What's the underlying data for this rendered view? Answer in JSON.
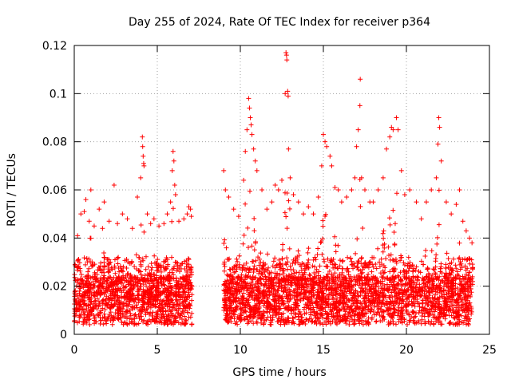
{
  "chart_data": {
    "type": "scatter",
    "title": "Day 255 of 2024, Rate Of TEC Index for receiver p364",
    "xlabel": "GPS time / hours",
    "ylabel": "ROTI / TECUs",
    "xlim": [
      0,
      25
    ],
    "ylim": [
      0,
      0.12
    ],
    "xticks": [
      0,
      5,
      10,
      15,
      20,
      25
    ],
    "xtick_labels": [
      "0",
      "5",
      "10",
      "15",
      "20",
      "25"
    ],
    "yticks": [
      0,
      0.02,
      0.04,
      0.06,
      0.08,
      0.1,
      0.12
    ],
    "ytick_labels": [
      "0",
      "0.02",
      "0.04",
      "0.06",
      "0.08",
      "0.1",
      "0.12"
    ],
    "grid": true,
    "marker": "+",
    "color": "#ff0000",
    "data_segments": [
      {
        "start_hour": 0.0,
        "end_hour": 7.1
      },
      {
        "start_hour": 9.0,
        "end_hour": 24.0
      }
    ],
    "series": [
      {
        "name": "ROTI",
        "points": [
          [
            0.05,
            0.029
          ],
          [
            0.2,
            0.041
          ],
          [
            0.4,
            0.05
          ],
          [
            0.6,
            0.051
          ],
          [
            0.7,
            0.056
          ],
          [
            0.9,
            0.047
          ],
          [
            1.0,
            0.06
          ],
          [
            1.2,
            0.045
          ],
          [
            1.5,
            0.052
          ],
          [
            1.7,
            0.044
          ],
          [
            1.8,
            0.055
          ],
          [
            2.1,
            0.047
          ],
          [
            2.4,
            0.062
          ],
          [
            2.6,
            0.046
          ],
          [
            2.9,
            0.05
          ],
          [
            3.2,
            0.048
          ],
          [
            3.5,
            0.044
          ],
          [
            3.8,
            0.057
          ],
          [
            4.0,
            0.065
          ],
          [
            4.1,
            0.082
          ],
          [
            4.12,
            0.078
          ],
          [
            4.15,
            0.074
          ],
          [
            4.18,
            0.071
          ],
          [
            4.2,
            0.07
          ],
          [
            4.4,
            0.05
          ],
          [
            4.6,
            0.046
          ],
          [
            4.8,
            0.048
          ],
          [
            5.1,
            0.045
          ],
          [
            5.4,
            0.046
          ],
          [
            5.6,
            0.05
          ],
          [
            5.8,
            0.055
          ],
          [
            5.9,
            0.068
          ],
          [
            5.95,
            0.076
          ],
          [
            6.0,
            0.072
          ],
          [
            6.05,
            0.062
          ],
          [
            6.1,
            0.058
          ],
          [
            6.3,
            0.047
          ],
          [
            6.6,
            0.048
          ],
          [
            6.8,
            0.05
          ],
          [
            6.9,
            0.053
          ],
          [
            7.0,
            0.052
          ],
          [
            7.05,
            0.049
          ],
          [
            9.0,
            0.068
          ],
          [
            9.1,
            0.06
          ],
          [
            9.3,
            0.057
          ],
          [
            9.6,
            0.052
          ],
          [
            9.9,
            0.049
          ],
          [
            10.2,
            0.064
          ],
          [
            10.3,
            0.076
          ],
          [
            10.4,
            0.085
          ],
          [
            10.5,
            0.098
          ],
          [
            10.55,
            0.094
          ],
          [
            10.6,
            0.09
          ],
          [
            10.65,
            0.087
          ],
          [
            10.7,
            0.083
          ],
          [
            10.8,
            0.077
          ],
          [
            10.9,
            0.072
          ],
          [
            11.0,
            0.068
          ],
          [
            11.3,
            0.06
          ],
          [
            11.6,
            0.052
          ],
          [
            11.9,
            0.055
          ],
          [
            12.1,
            0.062
          ],
          [
            12.3,
            0.06
          ],
          [
            12.5,
            0.064
          ],
          [
            12.7,
            0.1
          ],
          [
            12.75,
            0.117
          ],
          [
            12.78,
            0.116
          ],
          [
            12.8,
            0.114
          ],
          [
            12.85,
            0.101
          ],
          [
            12.88,
            0.099
          ],
          [
            12.9,
            0.077
          ],
          [
            13.0,
            0.065
          ],
          [
            13.2,
            0.058
          ],
          [
            13.5,
            0.055
          ],
          [
            13.8,
            0.05
          ],
          [
            14.1,
            0.053
          ],
          [
            14.4,
            0.05
          ],
          [
            14.7,
            0.057
          ],
          [
            14.9,
            0.07
          ],
          [
            15.0,
            0.083
          ],
          [
            15.1,
            0.08
          ],
          [
            15.2,
            0.078
          ],
          [
            15.4,
            0.074
          ],
          [
            15.5,
            0.07
          ],
          [
            15.7,
            0.061
          ],
          [
            15.9,
            0.06
          ],
          [
            16.1,
            0.055
          ],
          [
            16.4,
            0.057
          ],
          [
            16.7,
            0.06
          ],
          [
            16.9,
            0.065
          ],
          [
            17.0,
            0.078
          ],
          [
            17.1,
            0.085
          ],
          [
            17.2,
            0.095
          ],
          [
            17.22,
            0.106
          ],
          [
            17.3,
            0.065
          ],
          [
            17.5,
            0.06
          ],
          [
            17.8,
            0.055
          ],
          [
            18.0,
            0.055
          ],
          [
            18.3,
            0.06
          ],
          [
            18.6,
            0.065
          ],
          [
            18.8,
            0.077
          ],
          [
            19.0,
            0.082
          ],
          [
            19.1,
            0.086
          ],
          [
            19.2,
            0.085
          ],
          [
            19.4,
            0.09
          ],
          [
            19.5,
            0.085
          ],
          [
            19.7,
            0.068
          ],
          [
            19.9,
            0.058
          ],
          [
            20.2,
            0.06
          ],
          [
            20.6,
            0.055
          ],
          [
            20.9,
            0.048
          ],
          [
            21.2,
            0.055
          ],
          [
            21.5,
            0.06
          ],
          [
            21.8,
            0.065
          ],
          [
            21.9,
            0.079
          ],
          [
            21.95,
            0.09
          ],
          [
            22.0,
            0.086
          ],
          [
            22.1,
            0.072
          ],
          [
            22.4,
            0.055
          ],
          [
            22.7,
            0.05
          ],
          [
            23.0,
            0.054
          ],
          [
            23.2,
            0.06
          ],
          [
            23.4,
            0.047
          ],
          [
            23.6,
            0.043
          ],
          [
            23.8,
            0.04
          ],
          [
            23.95,
            0.038
          ]
        ]
      }
    ]
  }
}
